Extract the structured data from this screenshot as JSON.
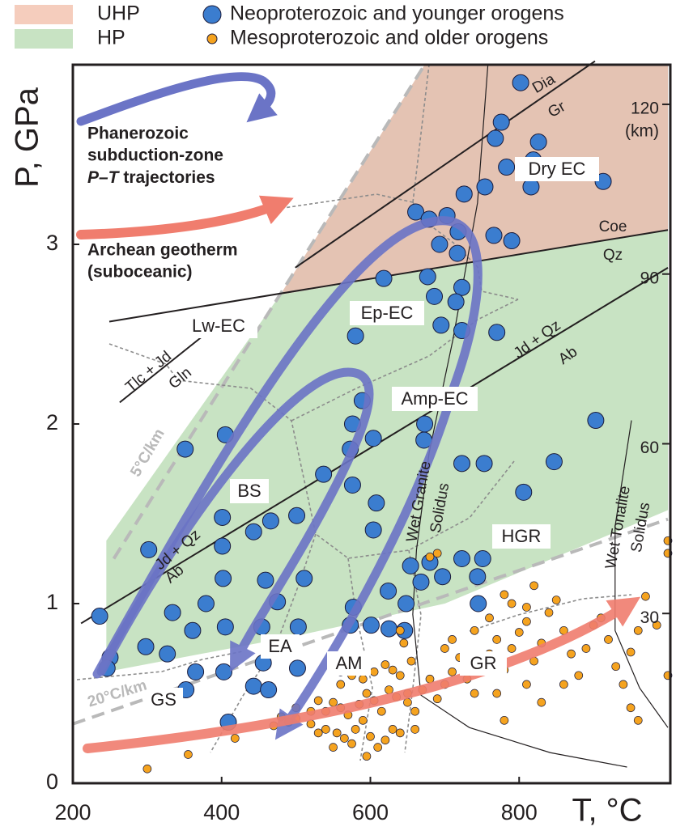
{
  "chart_data": {
    "type": "scatter",
    "xlabel": "T, °C",
    "ylabel": "P, GPa",
    "y2label": "(km)",
    "xlim": [
      200,
      1000
    ],
    "ylim": [
      0,
      4
    ],
    "xticks": [
      200,
      400,
      600,
      800
    ],
    "yticks": [
      0,
      1,
      2,
      3
    ],
    "y2lim": [
      0,
      127
    ],
    "y2ticks": [
      30,
      60,
      90,
      120
    ],
    "regions": [
      {
        "name": "UHP",
        "color": "#e4c3b3",
        "legend_color": "#f5cdbd",
        "x": [
          479,
          673,
          1000,
          1000
        ],
        "values": [
          2.72,
          4.0,
          4.0,
          3.08
        ]
      },
      {
        "name": "HP",
        "color": "#c8e3c3",
        "legend_color": "#c8e3c3",
        "x": [
          245,
          245,
          479,
          1000,
          1000,
          700,
          500
        ],
        "values": [
          0.62,
          1.35,
          2.72,
          3.08,
          1.52,
          1.0,
          0.82
        ]
      }
    ],
    "series": [
      {
        "name": "Neoproterozoic and younger orogens",
        "color": "#3b7dcf",
        "x": [
          802,
          776,
          768,
          826,
          819,
          783,
          816,
          913,
          726,
          754,
          661,
          679,
          703,
          718,
          766,
          790,
          693,
          717,
          618,
          677,
          686,
          723,
          715,
          695,
          723,
          770,
          580,
          589,
          576,
          604,
          673,
          672,
          573,
          576,
          608,
          537,
          723,
          753,
          847,
          903,
          806,
          351,
          405,
          501,
          466,
          443,
          401,
          401,
          302,
          604,
          654,
          680,
          697,
          723,
          751,
          668,
          744,
          511,
          459,
          402,
          745,
          379,
          334,
          236,
          475,
          577,
          624,
          648,
          573,
          601,
          625,
          646,
          361,
          405,
          454,
          503,
          477,
          250,
          298,
          327,
          246,
          365,
          403,
          456,
          502,
          352,
          443,
          463,
          409
        ],
        "values": [
          3.9,
          3.68,
          3.59,
          3.57,
          3.47,
          3.43,
          3.32,
          3.35,
          3.28,
          3.32,
          3.18,
          3.14,
          3.16,
          3.07,
          3.05,
          3.02,
          3.0,
          2.95,
          2.81,
          2.82,
          2.71,
          2.76,
          2.68,
          2.55,
          2.52,
          2.51,
          2.49,
          2.13,
          2.0,
          1.92,
          2.0,
          1.91,
          1.86,
          1.66,
          1.56,
          1.72,
          1.78,
          1.78,
          1.79,
          2.02,
          1.62,
          1.86,
          1.94,
          1.49,
          1.46,
          1.4,
          1.48,
          1.32,
          1.3,
          1.41,
          1.21,
          1.23,
          1.15,
          1.25,
          1.25,
          1.12,
          1.15,
          1.14,
          1.13,
          1.14,
          1.0,
          1.0,
          0.95,
          0.93,
          1.01,
          0.98,
          1.07,
          1.0,
          0.88,
          0.88,
          0.86,
          0.85,
          0.85,
          0.87,
          0.87,
          0.87,
          0.77,
          0.7,
          0.76,
          0.72,
          0.64,
          0.62,
          0.62,
          0.67,
          0.64,
          0.52,
          0.54,
          0.52,
          0.34
        ]
      },
      {
        "name": "Mesoproterozoic and older orogens",
        "color": "#f5a31f",
        "x": [
          300,
          355,
          418,
          470,
          490,
          500,
          520,
          540,
          555,
          565,
          575,
          580,
          590,
          600,
          610,
          620,
          630,
          540,
          550,
          560,
          570,
          585,
          595,
          605,
          615,
          625,
          635,
          560,
          575,
          590,
          605,
          620,
          630,
          640,
          650,
          660,
          670,
          680,
          690,
          700,
          710,
          720,
          730,
          740,
          750,
          760,
          770,
          780,
          790,
          800,
          810,
          820,
          830,
          840,
          850,
          860,
          870,
          880,
          890,
          900,
          910,
          920,
          930,
          940,
          950,
          960,
          970,
          985,
          1000,
          1000,
          1000,
          680,
          690,
          780,
          790,
          810,
          820,
          760,
          740,
          700,
          710,
          655,
          645,
          640,
          650,
          560,
          530,
          520,
          500,
          480,
          530,
          550,
          595,
          640,
          660,
          770,
          810,
          830,
          860,
          950,
          960,
          780
        ],
        "values": [
          0.08,
          0.16,
          0.25,
          0.32,
          0.34,
          0.36,
          0.33,
          0.3,
          0.28,
          0.25,
          0.22,
          0.3,
          0.35,
          0.26,
          0.2,
          0.24,
          0.3,
          0.4,
          0.45,
          0.42,
          0.38,
          0.44,
          0.5,
          0.46,
          0.4,
          0.52,
          0.48,
          0.55,
          0.6,
          0.58,
          0.62,
          0.66,
          0.63,
          0.6,
          0.45,
          0.4,
          0.52,
          0.58,
          0.47,
          0.55,
          0.62,
          0.7,
          0.58,
          0.5,
          0.66,
          0.72,
          0.8,
          0.63,
          0.75,
          0.84,
          0.9,
          0.68,
          0.78,
          0.95,
          1.02,
          0.85,
          0.72,
          0.6,
          0.75,
          0.88,
          0.92,
          0.8,
          0.65,
          0.55,
          0.73,
          0.85,
          1.04,
          0.88,
          0.6,
          1.28,
          1.35,
          1.26,
          1.28,
          1.05,
          1.0,
          0.98,
          1.1,
          0.92,
          0.85,
          0.75,
          0.8,
          0.68,
          0.78,
          0.85,
          0.5,
          0.62,
          0.46,
          0.4,
          0.42,
          0.37,
          0.28,
          0.2,
          0.15,
          0.28,
          0.3,
          0.5,
          0.55,
          0.45,
          0.55,
          0.42,
          0.35,
          0.35
        ]
      }
    ],
    "lines": [
      {
        "labels": [
          "Dia",
          "Gr"
        ],
        "x": [
          499,
          902
        ],
        "values": [
          2.87,
          4.02
        ]
      },
      {
        "labels": [
          "Coe",
          "Qz"
        ],
        "x": [
          249,
          1000
        ],
        "values": [
          2.57,
          3.08
        ]
      },
      {
        "labels": [
          "Jd + Qz",
          "Ab"
        ],
        "x": [
          211,
          1000
        ],
        "values": [
          0.89,
          2.87
        ]
      },
      {
        "labels": [
          "Tlc + Jd",
          "Gln"
        ],
        "x": [
          263,
          396
        ],
        "values": [
          2.12,
          2.56
        ]
      },
      {
        "labels": [
          "Wet Granite",
          "Solidus"
        ],
        "x": [
          758,
          744,
          711,
          679,
          662,
          657,
          668,
          733,
          842,
          945
        ],
        "values": [
          4.0,
          3.23,
          2.47,
          1.84,
          1.3,
          0.94,
          0.49,
          0.31,
          0.17,
          0.09
        ]
      },
      {
        "labels": [
          "Wet Tonalite",
          "Solidus"
        ],
        "x": [
          951,
          929,
          929,
          962,
          1000
        ],
        "values": [
          2.02,
          1.43,
          0.85,
          0.53,
          0.31
        ]
      }
    ],
    "geotherms": [
      {
        "label": "5°C/km",
        "x": [
          255,
          673
        ],
        "values": [
          1.25,
          4.0
        ]
      },
      {
        "label": "20°C/km",
        "x": [
          200,
          1000
        ],
        "values": [
          0.33,
          1.47
        ]
      }
    ],
    "fields": [
      "GS",
      "EA",
      "AM",
      "GR",
      "HGR",
      "BS",
      "Ep-EC",
      "Amp-EC",
      "Lw-EC",
      "Dry EC"
    ],
    "annotations": [
      "Phanerozoic",
      "subduction-zone",
      "P–T",
      " trajectories",
      "Archean geotherm",
      "(suboceanic)"
    ]
  }
}
